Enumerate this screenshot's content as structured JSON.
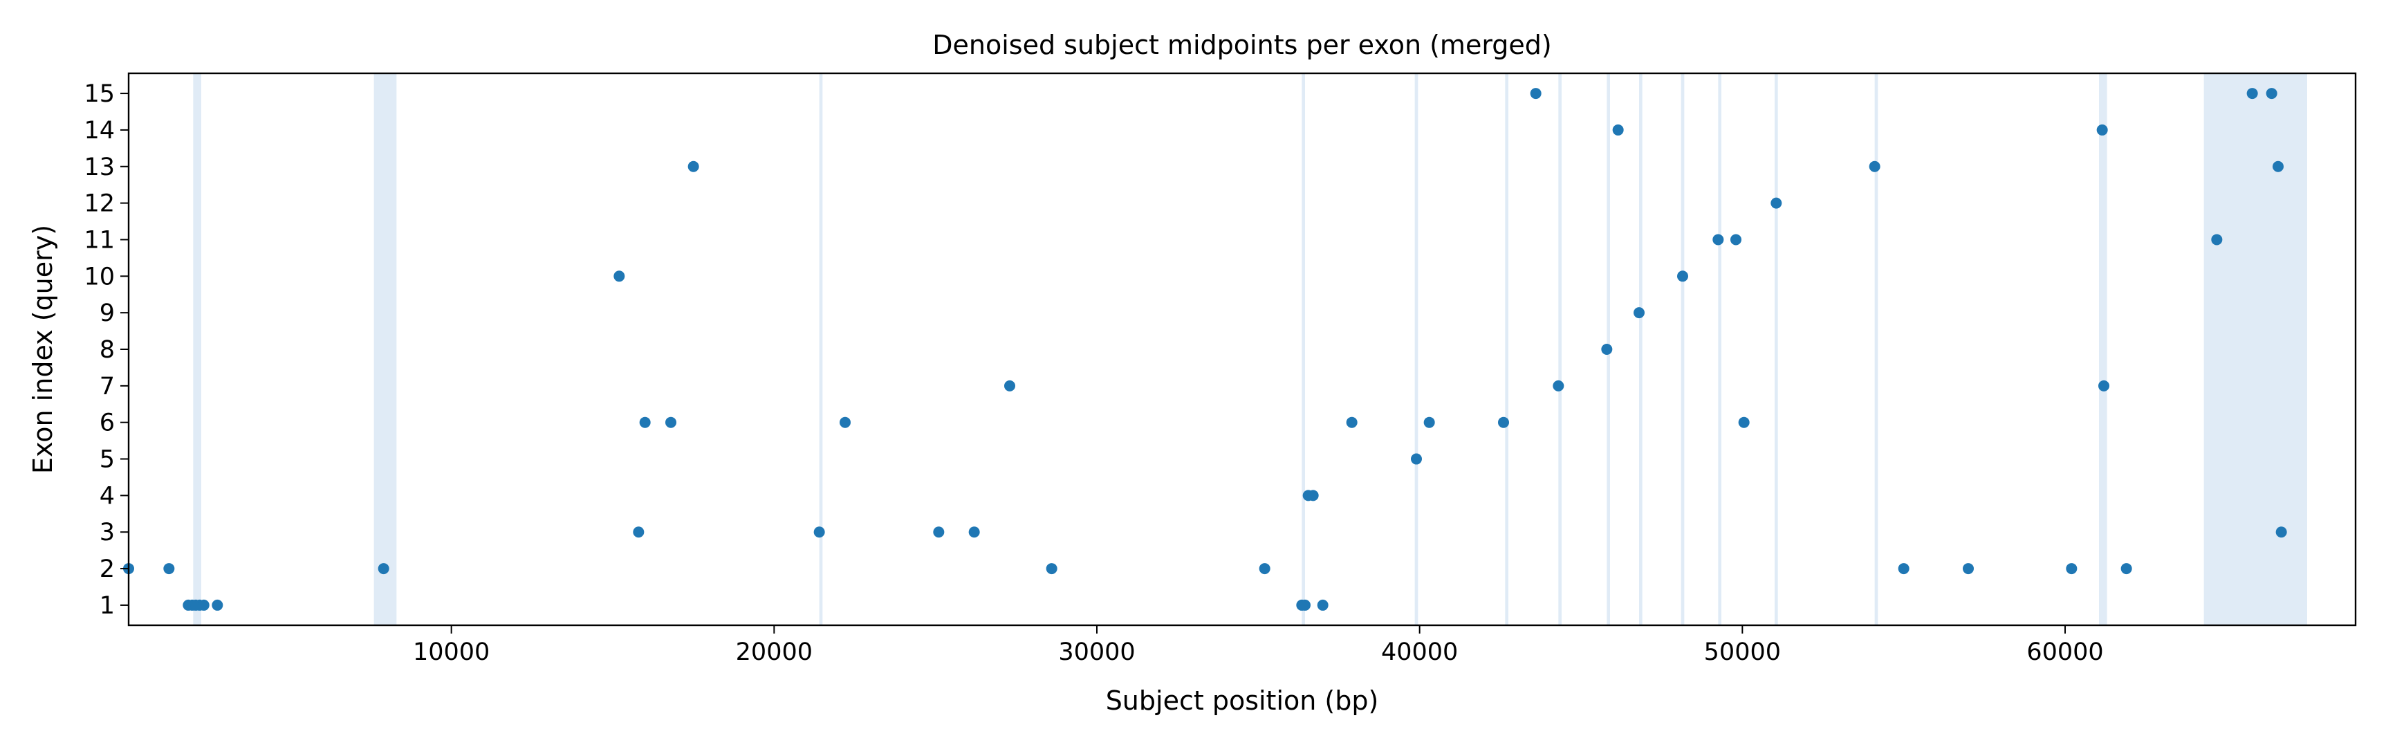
{
  "chart_data": {
    "type": "scatter",
    "title": "Denoised subject midpoints per exon (merged)",
    "xlabel": "Subject position (bp)",
    "ylabel": "Exon index (query)",
    "xlim": [
      0,
      69000
    ],
    "ylim": [
      0.45,
      15.55
    ],
    "xticks": [
      10000,
      20000,
      30000,
      40000,
      50000,
      60000
    ],
    "yticks": [
      1,
      2,
      3,
      4,
      5,
      6,
      7,
      8,
      9,
      10,
      11,
      12,
      13,
      14,
      15
    ],
    "grid": false,
    "legend": "none",
    "point_color": "#1f77b4",
    "highlight_color": "#c6dbef",
    "highlight_regions": [
      [
        2000,
        2250
      ],
      [
        7600,
        8300
      ],
      [
        21400,
        21500
      ],
      [
        36350,
        36450
      ],
      [
        39850,
        39950
      ],
      [
        42650,
        42750
      ],
      [
        44300,
        44400
      ],
      [
        45800,
        45900
      ],
      [
        46800,
        46900
      ],
      [
        48100,
        48200
      ],
      [
        49250,
        49350
      ],
      [
        51000,
        51100
      ],
      [
        54100,
        54200
      ],
      [
        61050,
        61300
      ],
      [
        64300,
        67500
      ]
    ],
    "points": [
      {
        "x": 0,
        "y": 2
      },
      {
        "x": 1250,
        "y": 2
      },
      {
        "x": 1850,
        "y": 1
      },
      {
        "x": 1970,
        "y": 1
      },
      {
        "x": 2080,
        "y": 1
      },
      {
        "x": 2200,
        "y": 1
      },
      {
        "x": 2330,
        "y": 1
      },
      {
        "x": 2750,
        "y": 1
      },
      {
        "x": 7900,
        "y": 2
      },
      {
        "x": 15200,
        "y": 10
      },
      {
        "x": 15800,
        "y": 3
      },
      {
        "x": 16000,
        "y": 6
      },
      {
        "x": 16800,
        "y": 6
      },
      {
        "x": 17500,
        "y": 13
      },
      {
        "x": 21400,
        "y": 3
      },
      {
        "x": 22200,
        "y": 6
      },
      {
        "x": 25100,
        "y": 3
      },
      {
        "x": 26200,
        "y": 3
      },
      {
        "x": 27300,
        "y": 7
      },
      {
        "x": 28600,
        "y": 2
      },
      {
        "x": 35200,
        "y": 2
      },
      {
        "x": 36350,
        "y": 1
      },
      {
        "x": 36450,
        "y": 1
      },
      {
        "x": 36550,
        "y": 4
      },
      {
        "x": 36700,
        "y": 4
      },
      {
        "x": 37000,
        "y": 1
      },
      {
        "x": 37900,
        "y": 6
      },
      {
        "x": 39900,
        "y": 5
      },
      {
        "x": 40300,
        "y": 6
      },
      {
        "x": 42600,
        "y": 6
      },
      {
        "x": 43600,
        "y": 15
      },
      {
        "x": 44300,
        "y": 7
      },
      {
        "x": 45800,
        "y": 8
      },
      {
        "x": 46150,
        "y": 14
      },
      {
        "x": 46800,
        "y": 9
      },
      {
        "x": 48150,
        "y": 10
      },
      {
        "x": 49250,
        "y": 11
      },
      {
        "x": 49800,
        "y": 11
      },
      {
        "x": 50050,
        "y": 6
      },
      {
        "x": 51050,
        "y": 12
      },
      {
        "x": 54100,
        "y": 13
      },
      {
        "x": 55000,
        "y": 2
      },
      {
        "x": 57000,
        "y": 2
      },
      {
        "x": 60200,
        "y": 2
      },
      {
        "x": 61150,
        "y": 14
      },
      {
        "x": 61200,
        "y": 7
      },
      {
        "x": 61900,
        "y": 2
      },
      {
        "x": 64700,
        "y": 11
      },
      {
        "x": 65800,
        "y": 15
      },
      {
        "x": 66400,
        "y": 15
      },
      {
        "x": 66600,
        "y": 13
      },
      {
        "x": 66700,
        "y": 3
      }
    ]
  }
}
